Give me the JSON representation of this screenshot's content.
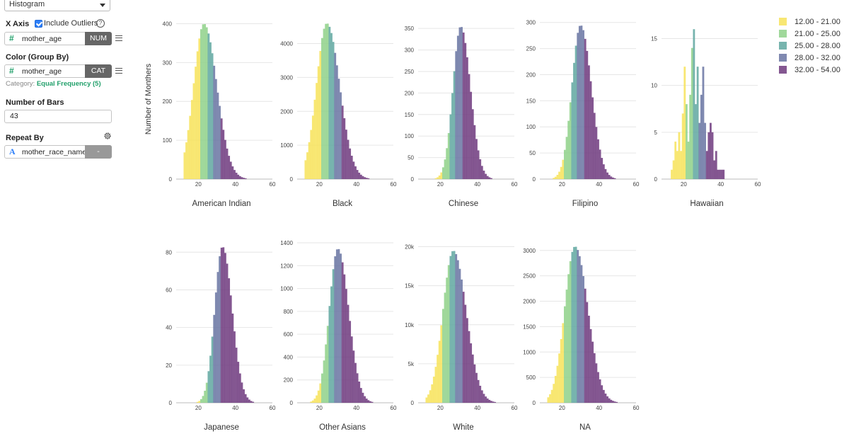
{
  "panel": {
    "chart_type": "Histogram",
    "x_axis_label": "X Axis",
    "include_outliers_label": "Include Outliers",
    "include_outliers_checked": true,
    "x_field": {
      "type_glyph": "#",
      "name": "mother_age",
      "type": "NUM"
    },
    "color_label": "Color (Group By)",
    "color_field": {
      "type_glyph": "#",
      "name": "mother_age",
      "type": "CAT"
    },
    "category_prefix": "Category:",
    "category_value": "Equal Frequency (5)",
    "bars_label": "Number of Bars",
    "bars_value": "43",
    "repeat_label": "Repeat By",
    "repeat_field": {
      "type_glyph": "A",
      "name": "mother_race_name",
      "type": "-"
    }
  },
  "chart_data": {
    "type": "bar",
    "subtype": "histogram-small-multiples",
    "ylabel": "Number of Monthers",
    "x_ticks": [
      20,
      40,
      60
    ],
    "x_range": [
      8,
      60
    ],
    "grid": true,
    "legend": {
      "placement": "top-right",
      "entries": [
        {
          "label": "12.00 - 21.00",
          "color": "#f7e35a"
        },
        {
          "label": "21.00 - 25.00",
          "color": "#8fd18a"
        },
        {
          "label": "25.00 - 28.00",
          "color": "#5fa7a0"
        },
        {
          "label": "28.00 - 32.00",
          "color": "#6874a2"
        },
        {
          "label": "32.00 - 54.00",
          "color": "#6f3a7e"
        }
      ]
    },
    "panels": [
      {
        "title": "American Indian",
        "peak": 400,
        "mean": 23,
        "sd": 6.0,
        "ymax": 410,
        "y_ticks": [
          {
            "v": 0,
            "t": "0"
          },
          {
            "v": 100,
            "t": "100"
          },
          {
            "v": 200,
            "t": "200"
          },
          {
            "v": 300,
            "t": "300"
          },
          {
            "v": 400,
            "t": "400"
          }
        ]
      },
      {
        "title": "Black",
        "peak": 4600,
        "mean": 24,
        "sd": 6.0,
        "ymax": 4700,
        "y_ticks": [
          {
            "v": 0,
            "t": "0"
          },
          {
            "v": 1000,
            "t": "1000"
          },
          {
            "v": 2000,
            "t": "2000"
          },
          {
            "v": 3000,
            "t": "3000"
          },
          {
            "v": 4000,
            "t": "4000"
          }
        ]
      },
      {
        "title": "Chinese",
        "peak": 355,
        "mean": 31,
        "sd": 4.5,
        "ymax": 370,
        "y_ticks": [
          {
            "v": 0,
            "t": "0"
          },
          {
            "v": 50,
            "t": "50"
          },
          {
            "v": 100,
            "t": "100"
          },
          {
            "v": 150,
            "t": "150"
          },
          {
            "v": 200,
            "t": "200"
          },
          {
            "v": 250,
            "t": "250"
          },
          {
            "v": 300,
            "t": "300"
          },
          {
            "v": 350,
            "t": "350"
          }
        ]
      },
      {
        "title": "Filipino",
        "peak": 295,
        "mean": 30,
        "sd": 5.0,
        "ymax": 305,
        "y_ticks": [
          {
            "v": 0,
            "t": "0"
          },
          {
            "v": 50,
            "t": "50"
          },
          {
            "v": 100,
            "t": "100"
          },
          {
            "v": 150,
            "t": "150"
          },
          {
            "v": 200,
            "t": "200"
          },
          {
            "v": 250,
            "t": "250"
          },
          {
            "v": 300,
            "t": "300"
          }
        ]
      },
      {
        "title": "Hawaiian",
        "peak": 16,
        "mean": 25,
        "sd": 6.0,
        "ymax": 17,
        "noisy": true,
        "y_ticks": [
          {
            "v": 0,
            "t": "0"
          },
          {
            "v": 5,
            "t": "5"
          },
          {
            "v": 10,
            "t": "10"
          },
          {
            "v": 15,
            "t": "15"
          }
        ]
      },
      {
        "title": "Japanese",
        "peak": 83,
        "mean": 33,
        "sd": 4.5,
        "ymax": 85,
        "y_ticks": [
          {
            "v": 0,
            "t": "0"
          },
          {
            "v": 20,
            "t": "20"
          },
          {
            "v": 40,
            "t": "40"
          },
          {
            "v": 60,
            "t": "60"
          },
          {
            "v": 80,
            "t": "80"
          }
        ]
      },
      {
        "title": "Other Asians",
        "peak": 1350,
        "mean": 30,
        "sd": 5.0,
        "ymax": 1400,
        "y_ticks": [
          {
            "v": 0,
            "t": "0"
          },
          {
            "v": 200,
            "t": "200"
          },
          {
            "v": 400,
            "t": "400"
          },
          {
            "v": 600,
            "t": "600"
          },
          {
            "v": 800,
            "t": "800"
          },
          {
            "v": 1000,
            "t": "1000"
          },
          {
            "v": 1200,
            "t": "1200"
          },
          {
            "v": 1400,
            "t": "1400"
          }
        ]
      },
      {
        "title": "White",
        "peak": 19500,
        "mean": 27,
        "sd": 6.0,
        "ymax": 20500,
        "y_ticks": [
          {
            "v": 0,
            "t": "0"
          },
          {
            "v": 5000,
            "t": "5k"
          },
          {
            "v": 10000,
            "t": "10k"
          },
          {
            "v": 15000,
            "t": "15k"
          },
          {
            "v": 20000,
            "t": "20k"
          }
        ]
      },
      {
        "title": "NA",
        "peak": 3080,
        "mean": 27,
        "sd": 6.0,
        "ymax": 3150,
        "y_ticks": [
          {
            "v": 0,
            "t": "0"
          },
          {
            "v": 500,
            "t": "500"
          },
          {
            "v": 1000,
            "t": "1000"
          },
          {
            "v": 1500,
            "t": "1500"
          },
          {
            "v": 2000,
            "t": "2000"
          },
          {
            "v": 2500,
            "t": "2500"
          },
          {
            "v": 3000,
            "t": "3000"
          }
        ]
      }
    ]
  }
}
